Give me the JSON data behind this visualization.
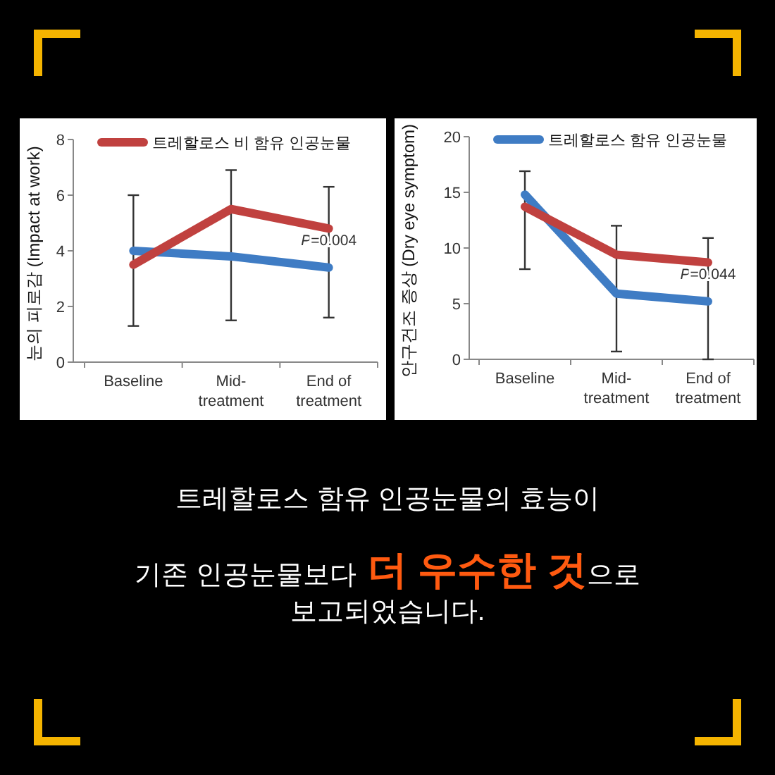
{
  "chart_data": [
    {
      "type": "line",
      "categories": [
        "Baseline",
        "Mid-treatment",
        "End of treatment"
      ],
      "ylabel": "눈의 피로감 (Impact at work)",
      "ylim": [
        0,
        8
      ],
      "yticks": [
        0,
        2,
        4,
        6,
        8
      ],
      "grid": false,
      "legend": "top",
      "marker": "none",
      "line_style": "solid",
      "series": [
        {
          "color": "#3f7cc4",
          "values": [
            4.0,
            3.8,
            3.4
          ],
          "errors": [
            [
              1.3,
              6.0
            ],
            [
              1.5,
              6.9
            ],
            [
              1.6,
              6.3
            ]
          ]
        },
        {
          "name": "트레할로스 비 함유 인공눈물",
          "color": "#c0413f",
          "values": [
            3.5,
            5.5,
            4.8
          ]
        }
      ],
      "annotations": [
        {
          "text": "P=0.004",
          "x": "End of treatment",
          "y": 4.2
        }
      ]
    },
    {
      "type": "line",
      "categories": [
        "Baseline",
        "Mid-treatment",
        "End of treatment"
      ],
      "ylabel": "안구건조 증상 (Dry eye symptom)",
      "ylim": [
        0,
        20
      ],
      "yticks": [
        0,
        5,
        10,
        15,
        20
      ],
      "grid": false,
      "legend": "top",
      "marker": "none",
      "line_style": "solid",
      "series": [
        {
          "name": "트레할로스 함유 인공눈물",
          "color": "#3f7cc4",
          "values": [
            14.8,
            5.9,
            5.2
          ],
          "errors": [
            [
              8.1,
              16.9
            ],
            [
              0.7,
              12.0
            ],
            [
              0,
              10.9
            ]
          ]
        },
        {
          "color": "#c0413f",
          "values": [
            13.7,
            9.4,
            8.7
          ]
        }
      ],
      "annotations": [
        {
          "text": "P=0.044",
          "x": "End of treatment",
          "y": 7.2
        }
      ]
    },
    {
      "type": "other",
      "annotations": [
        "트레할로스 함유 인공눈물의 효능이",
        "기존 인공눈물보다",
        "더 우수한 것",
        "으로",
        "보고되었습니다."
      ]
    }
  ]
}
